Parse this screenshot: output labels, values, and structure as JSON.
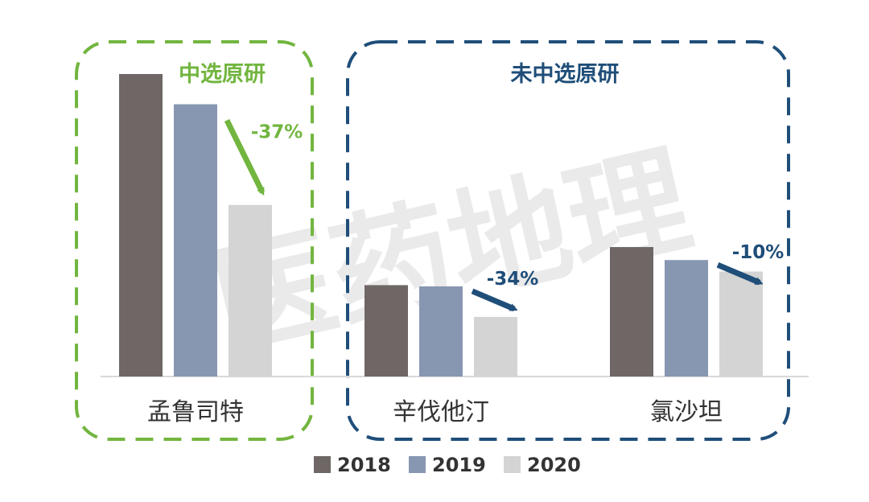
{
  "chart_data": {
    "type": "bar",
    "categories": [
      "孟鲁司特",
      "辛伐他汀",
      "氯沙坦"
    ],
    "series": [
      {
        "name": "2018",
        "values": [
          100,
          30.2,
          42.8
        ]
      },
      {
        "name": "2019",
        "values": [
          90,
          29.8,
          38.5
        ]
      },
      {
        "name": "2020",
        "values": [
          56.7,
          19.7,
          34.7
        ]
      }
    ],
    "ylim": [
      0,
      100
    ],
    "grid": false,
    "legend_position": "bottom",
    "colors": [
      "#6e6766",
      "#8797b2",
      "#d4d4d4"
    ],
    "groups": [
      {
        "title": "中选原研",
        "color": "#72b53f",
        "categories": [
          "孟鲁司特"
        ]
      },
      {
        "title": "未中选原研",
        "color": "#1f4e79",
        "categories": [
          "辛伐他汀",
          "氯沙坦"
        ]
      }
    ],
    "annotations": [
      {
        "category": "孟鲁司特",
        "text": "-37%",
        "color": "#72b53f"
      },
      {
        "category": "辛伐他汀",
        "text": "-34%",
        "color": "#1f4e79"
      },
      {
        "category": "氯沙坦",
        "text": "-10%",
        "color": "#1f4e79"
      }
    ]
  },
  "watermark": {
    "text": "医药地理"
  }
}
